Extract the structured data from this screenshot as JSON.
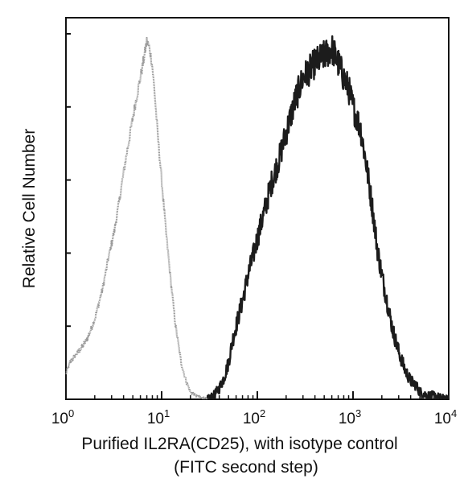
{
  "chart_data": {
    "type": "area",
    "title": "",
    "xlabel": "Purified IL2RA(CD25), with isotype control",
    "xlabel_line2": "(FITC second step)",
    "ylabel": "Relative Cell Number",
    "x_scale": "log",
    "xlim": [
      1,
      10000
    ],
    "ylim": [
      0,
      1
    ],
    "x_ticks": [
      {
        "value": 1,
        "base": "10",
        "exp": "0"
      },
      {
        "value": 10,
        "base": "10",
        "exp": "1"
      },
      {
        "value": 100,
        "base": "10",
        "exp": "2"
      },
      {
        "value": 1000,
        "base": "10",
        "exp": "3"
      },
      {
        "value": 10000,
        "base": "10",
        "exp": "4"
      }
    ],
    "y_ticks": [
      0.2,
      0.4,
      0.6,
      0.8,
      1.0
    ],
    "grid": false,
    "legend": "none",
    "series": [
      {
        "role": "isotype control",
        "color": "#9a9a9a",
        "stroke_width": 2.2,
        "x": [
          1,
          1.1,
          1.25,
          1.45,
          1.7,
          2.0,
          2.4,
          2.8,
          3.2,
          3.6,
          4.0,
          4.5,
          5.0,
          5.5,
          6.0,
          6.5,
          7.0,
          7.5,
          8.0,
          8.5,
          9.0,
          10.0,
          11.0,
          12.5,
          14.0,
          16.0,
          18.0,
          20.0,
          23.0,
          26.0,
          30.0
        ],
        "y": [
          0.07,
          0.1,
          0.12,
          0.14,
          0.17,
          0.22,
          0.3,
          0.39,
          0.46,
          0.54,
          0.62,
          0.7,
          0.77,
          0.83,
          0.88,
          0.93,
          0.98,
          0.96,
          0.91,
          0.83,
          0.74,
          0.6,
          0.47,
          0.32,
          0.2,
          0.1,
          0.05,
          0.02,
          0.01,
          0.005,
          0
        ]
      },
      {
        "role": "IL2RA(CD25)",
        "color": "#1c1c1c",
        "stroke_width": 2.4,
        "x": [
          30,
          35,
          40,
          45,
          50,
          55,
          60,
          70,
          80,
          90,
          100,
          120,
          140,
          170,
          200,
          250,
          300,
          350,
          400,
          450,
          500,
          550,
          600,
          700,
          800,
          900,
          1000,
          1200,
          1400,
          1600,
          1800,
          2000,
          2300,
          2600,
          3000,
          3500,
          4000,
          4500,
          5000,
          6000,
          7000,
          8000,
          9000,
          10000
        ],
        "y": [
          0,
          0.01,
          0.03,
          0.06,
          0.1,
          0.16,
          0.2,
          0.27,
          0.34,
          0.39,
          0.44,
          0.52,
          0.59,
          0.66,
          0.73,
          0.82,
          0.88,
          0.9,
          0.92,
          0.93,
          0.94,
          0.95,
          0.96,
          0.92,
          0.88,
          0.85,
          0.8,
          0.74,
          0.63,
          0.52,
          0.41,
          0.34,
          0.26,
          0.19,
          0.13,
          0.08,
          0.05,
          0.04,
          0.02,
          0.01,
          0.01,
          0.005,
          0.002,
          0
        ]
      }
    ]
  }
}
